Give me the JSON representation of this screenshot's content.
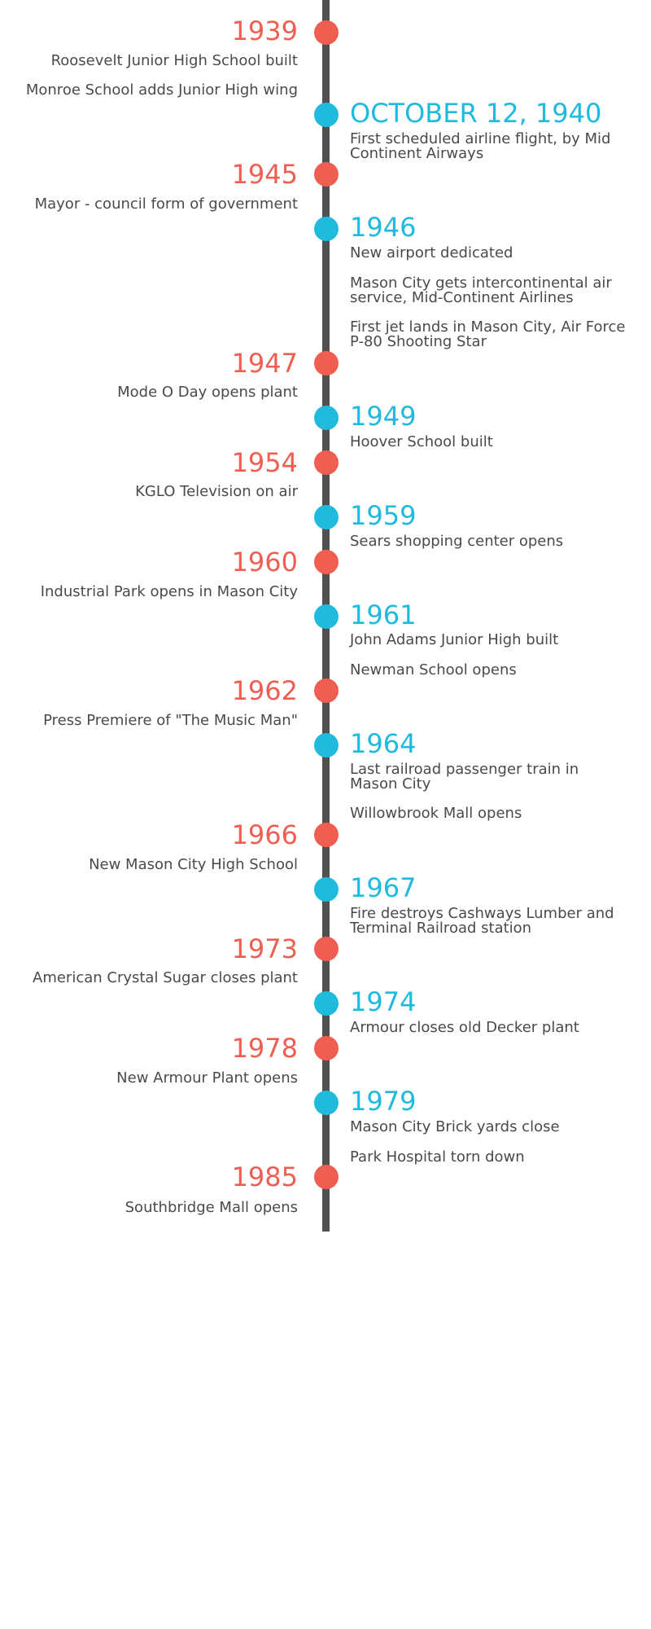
{
  "colors": {
    "left_accent": "#f05e52",
    "right_accent": "#1fbadc",
    "spine": "#505050",
    "text": "#4a4a4a"
  },
  "entries": [
    {
      "side": "left",
      "date": "1939",
      "events": [
        "Roosevelt Junior High School built",
        "Monroe School adds Junior High wing"
      ]
    },
    {
      "side": "right",
      "date": "OCTOBER 12, 1940",
      "events": [
        "First scheduled airline flight, by Mid Continent Airways"
      ]
    },
    {
      "side": "left",
      "date": "1945",
      "events": [
        "Mayor - council form of government"
      ]
    },
    {
      "side": "right",
      "date": "1946",
      "events": [
        "New airport dedicated",
        "Mason City gets intercontinental air service, Mid-Continent Airlines",
        "First jet lands in Mason City, Air Force P-80 Shooting Star"
      ]
    },
    {
      "side": "left",
      "date": "1947",
      "events": [
        "Mode O Day opens plant"
      ]
    },
    {
      "side": "right",
      "date": "1949",
      "events": [
        "Hoover School built"
      ]
    },
    {
      "side": "left",
      "date": "1954",
      "events": [
        "KGLO Television on air"
      ]
    },
    {
      "side": "right",
      "date": "1959",
      "events": [
        "Sears shopping center opens"
      ]
    },
    {
      "side": "left",
      "date": "1960",
      "events": [
        "Industrial Park opens in Mason City"
      ]
    },
    {
      "side": "right",
      "date": "1961",
      "events": [
        "John Adams Junior High built",
        "Newman School opens"
      ]
    },
    {
      "side": "left",
      "date": "1962",
      "events": [
        "Press Premiere of \"The Music Man\""
      ]
    },
    {
      "side": "right",
      "date": "1964",
      "events": [
        "Last railroad passenger train in Mason City",
        "Willowbrook Mall opens"
      ]
    },
    {
      "side": "left",
      "date": "1966",
      "events": [
        "New Mason City High School"
      ]
    },
    {
      "side": "right",
      "date": "1967",
      "events": [
        "Fire destroys Cashways Lumber and Terminal Railroad station"
      ]
    },
    {
      "side": "left",
      "date": "1973",
      "events": [
        "American Crystal Sugar closes plant"
      ]
    },
    {
      "side": "right",
      "date": "1974",
      "events": [
        "Armour closes old Decker plant"
      ]
    },
    {
      "side": "left",
      "date": "1978",
      "events": [
        "New Armour Plant opens"
      ]
    },
    {
      "side": "right",
      "date": "1979",
      "events": [
        "Mason City Brick yards close",
        "Park Hospital torn down"
      ]
    },
    {
      "side": "left",
      "date": "1985",
      "events": [
        "Southbridge Mall opens"
      ]
    }
  ]
}
